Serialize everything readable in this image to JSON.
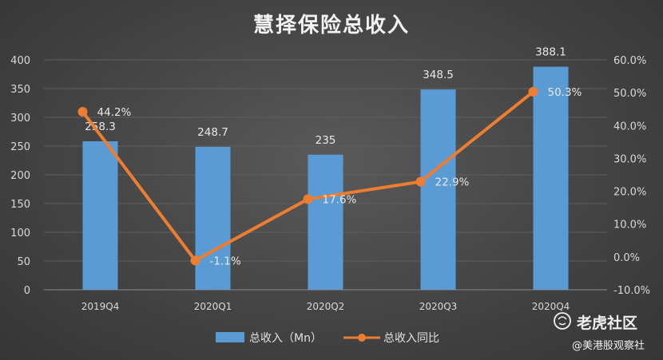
{
  "chart_data": {
    "type": "bar+line",
    "title": "慧择保险总收入",
    "categories": [
      "2019Q4",
      "2020Q1",
      "2020Q2",
      "2020Q3",
      "2020Q4"
    ],
    "bar_series": {
      "name": "总收入（Mn）",
      "values": [
        258.3,
        248.7,
        235,
        348.5,
        388.1
      ],
      "labels": [
        "258.3",
        "248.7",
        "235",
        "348.5",
        "388.1"
      ],
      "color": "#5b9bd5"
    },
    "line_series": {
      "name": "总收入同比",
      "values": [
        44.2,
        -1.1,
        17.6,
        22.9,
        50.3
      ],
      "labels": [
        "44.2%",
        "-1.1%",
        "17.6%",
        "22.9%",
        "50.3%"
      ],
      "color": "#ed7d31"
    },
    "y_left": {
      "min": 0,
      "max": 400,
      "step": 50,
      "ticks": [
        "0",
        "50",
        "100",
        "150",
        "200",
        "250",
        "300",
        "350",
        "400"
      ]
    },
    "y_right": {
      "min": -10,
      "max": 60,
      "step": 10,
      "ticks": [
        "-10.0%",
        "0.0%",
        "10.0%",
        "20.0%",
        "30.0%",
        "40.0%",
        "50.0%",
        "60.0%"
      ]
    },
    "grid": true,
    "legend_position": "bottom"
  },
  "watermark": {
    "brand": "老虎社区",
    "handle": "@美港股观察社",
    "icon": "tiger-icon"
  }
}
